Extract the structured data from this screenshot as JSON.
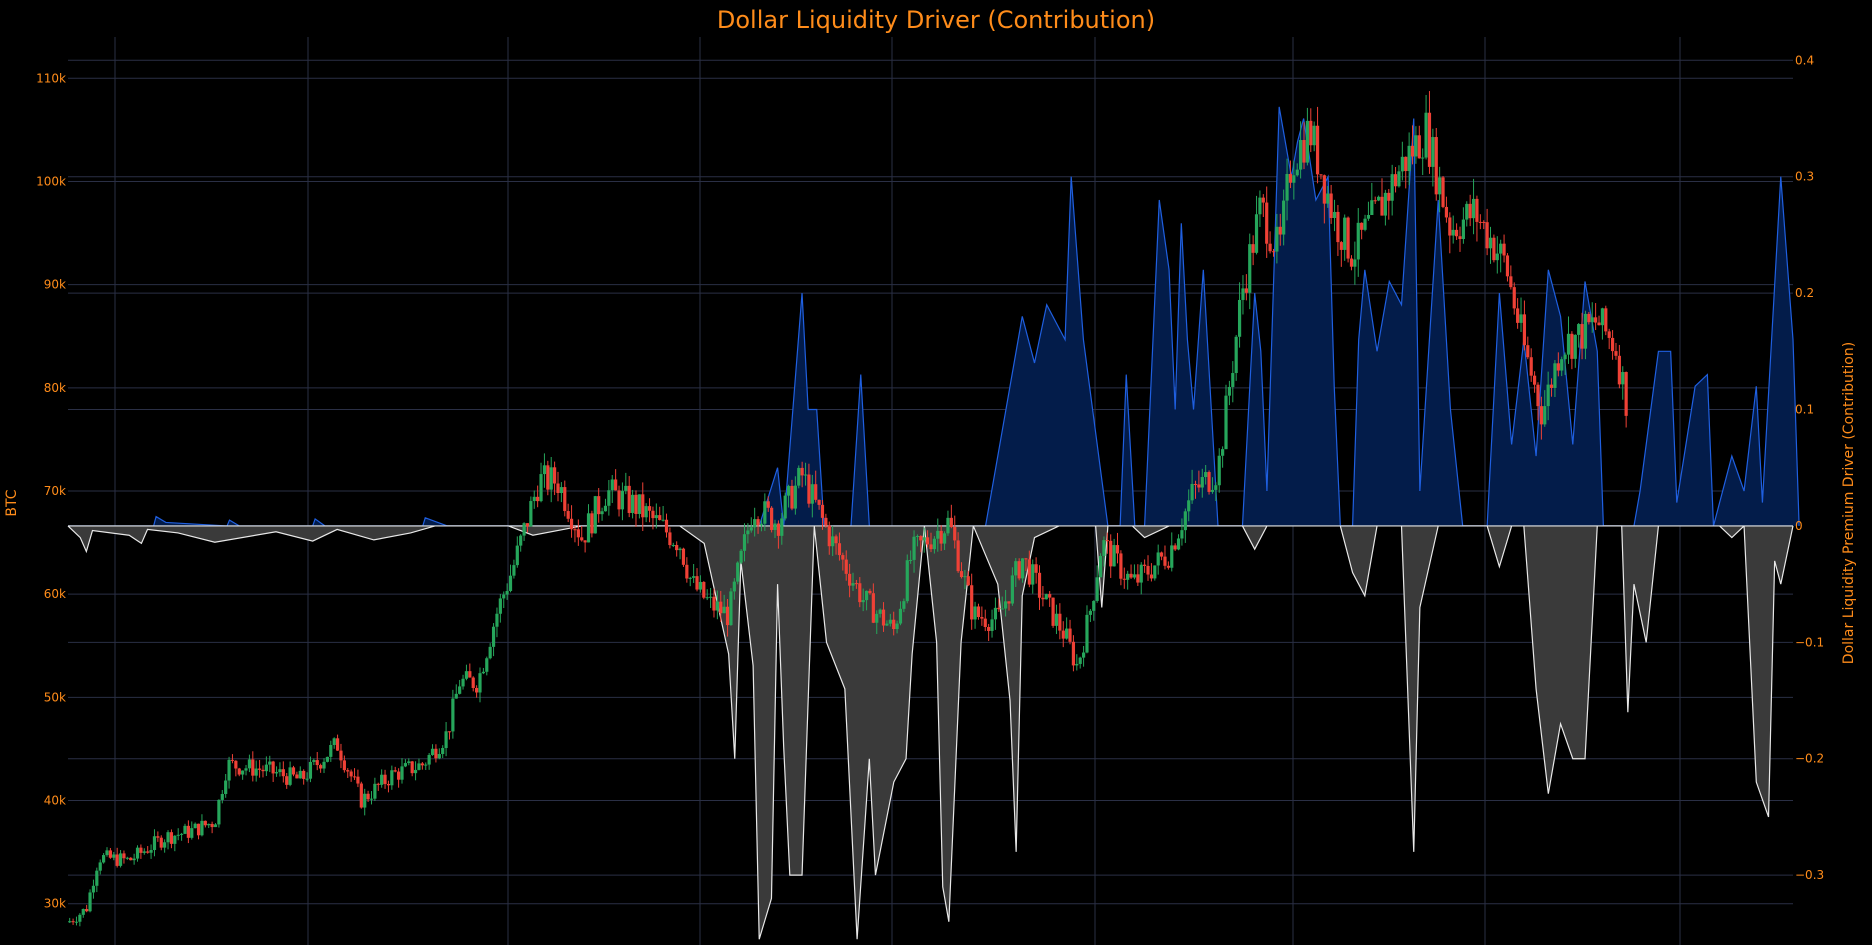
{
  "chart_data": {
    "type": "candlestick+area",
    "title": "Dollar Liquidity Driver (Contribution)",
    "left_axis": {
      "label": "BTC",
      "range": [
        26000,
        114000
      ],
      "ticks": [
        30000,
        40000,
        50000,
        60000,
        70000,
        80000,
        90000,
        100000,
        110000
      ],
      "tick_labels": [
        "30k",
        "40k",
        "50k",
        "60k",
        "70k",
        "80k",
        "90k",
        "100k",
        "110k"
      ]
    },
    "right_axis": {
      "label": "Dollar Liquidity Premium Driver (Contribution)",
      "range": [
        -0.36,
        0.42
      ],
      "ticks": [
        -0.3,
        -0.2,
        -0.1,
        0,
        0.1,
        0.2,
        0.3,
        0.4
      ],
      "tick_labels": [
        "−0.3",
        "−0.2",
        "−0.1",
        "0",
        "0.1",
        "0.2",
        "0.3",
        "0.4"
      ]
    },
    "grid": true,
    "colors": {
      "background": "#000000",
      "text": "#ff8c1a",
      "grid": "#2a2f45",
      "up_candle": "#26a65b",
      "down_candle": "#ef4136",
      "positive_line": "#1f5fe0",
      "positive_fill": "#031c4a",
      "negative_line": "#e8e8e8",
      "negative_fill": "#3a3a3a"
    },
    "price_anchors": [
      [
        0,
        28200
      ],
      [
        0.015,
        29500
      ],
      [
        0.025,
        34500
      ],
      [
        0.05,
        34200
      ],
      [
        0.08,
        36500
      ],
      [
        0.1,
        37000
      ],
      [
        0.12,
        38000
      ],
      [
        0.13,
        43500
      ],
      [
        0.16,
        43000
      ],
      [
        0.19,
        42000
      ],
      [
        0.22,
        45500
      ],
      [
        0.24,
        40000
      ],
      [
        0.265,
        42500
      ],
      [
        0.29,
        43500
      ],
      [
        0.31,
        46500
      ],
      [
        0.32,
        51500
      ],
      [
        0.335,
        51500
      ],
      [
        0.35,
        58000
      ],
      [
        0.365,
        63000
      ],
      [
        0.385,
        71000
      ],
      [
        0.4,
        71000
      ],
      [
        0.42,
        65500
      ],
      [
        0.44,
        70000
      ],
      [
        0.465,
        68500
      ],
      [
        0.48,
        67000
      ],
      [
        0.5,
        65000
      ],
      [
        0.51,
        61000
      ],
      [
        0.525,
        59000
      ],
      [
        0.54,
        58000
      ],
      [
        0.56,
        68500
      ],
      [
        0.58,
        67000
      ],
      [
        0.6,
        71500
      ],
      [
        0.625,
        65000
      ],
      [
        0.65,
        59500
      ],
      [
        0.675,
        56500
      ],
      [
        0.69,
        64000
      ],
      [
        0.72,
        67000
      ],
      [
        0.74,
        58000
      ],
      [
        0.76,
        57500
      ],
      [
        0.78,
        63500
      ],
      [
        0.8,
        59000
      ],
      [
        0.815,
        56000
      ],
      [
        0.825,
        53000
      ],
      [
        0.835,
        58000
      ],
      [
        0.845,
        65000
      ],
      [
        0.87,
        61000
      ],
      [
        0.9,
        64000
      ],
      [
        0.92,
        70000
      ],
      [
        0.94,
        72000
      ],
      [
        0.96,
        89500
      ],
      [
        0.975,
        97500
      ],
      [
        0.99,
        93000
      ],
      [
        1.0,
        102000
      ],
      [
        1.015,
        105000
      ],
      [
        1.035,
        96500
      ],
      [
        1.05,
        93000
      ],
      [
        1.07,
        97000
      ],
      [
        1.09,
        101500
      ],
      [
        1.11,
        105000
      ],
      [
        1.13,
        95500
      ],
      [
        1.15,
        97000
      ],
      [
        1.175,
        92000
      ],
      [
        1.19,
        84000
      ],
      [
        1.205,
        77500
      ],
      [
        1.22,
        84000
      ],
      [
        1.235,
        85000
      ],
      [
        1.25,
        86500
      ],
      [
        1.265,
        84000
      ],
      [
        1.275,
        78000
      ]
    ],
    "positive_anchors": [
      [
        0.0,
        0
      ],
      [
        0.07,
        0
      ],
      [
        0.072,
        0.008
      ],
      [
        0.08,
        0.003
      ],
      [
        0.13,
        0
      ],
      [
        0.132,
        0.005
      ],
      [
        0.14,
        0
      ],
      [
        0.2,
        0
      ],
      [
        0.202,
        0.006
      ],
      [
        0.21,
        0
      ],
      [
        0.29,
        0
      ],
      [
        0.292,
        0.007
      ],
      [
        0.31,
        0
      ],
      [
        0.45,
        0
      ],
      [
        0.565,
        0
      ],
      [
        0.58,
        0.05
      ],
      [
        0.585,
        0
      ],
      [
        0.6,
        0.2
      ],
      [
        0.605,
        0.1
      ],
      [
        0.612,
        0.1
      ],
      [
        0.618,
        0
      ],
      [
        0.64,
        0
      ],
      [
        0.648,
        0.13
      ],
      [
        0.655,
        0
      ],
      [
        0.75,
        0
      ],
      [
        0.78,
        0.18
      ],
      [
        0.79,
        0.14
      ],
      [
        0.8,
        0.19
      ],
      [
        0.815,
        0.16
      ],
      [
        0.82,
        0.3
      ],
      [
        0.83,
        0.16
      ],
      [
        0.85,
        0
      ],
      [
        0.86,
        0
      ],
      [
        0.865,
        0.13
      ],
      [
        0.872,
        0
      ],
      [
        0.88,
        0
      ],
      [
        0.892,
        0.28
      ],
      [
        0.9,
        0.22
      ],
      [
        0.905,
        0.1
      ],
      [
        0.91,
        0.26
      ],
      [
        0.915,
        0.16
      ],
      [
        0.92,
        0.1
      ],
      [
        0.928,
        0.22
      ],
      [
        0.94,
        0
      ],
      [
        0.96,
        0
      ],
      [
        0.97,
        0.2
      ],
      [
        0.975,
        0.15
      ],
      [
        0.98,
        0.03
      ],
      [
        0.99,
        0.36
      ],
      [
        1.0,
        0.3
      ],
      [
        1.005,
        0.33
      ],
      [
        1.01,
        0.35
      ],
      [
        1.02,
        0.28
      ],
      [
        1.03,
        0.3
      ],
      [
        1.035,
        0.12
      ],
      [
        1.04,
        0
      ],
      [
        1.05,
        0
      ],
      [
        1.055,
        0.16
      ],
      [
        1.06,
        0.22
      ],
      [
        1.07,
        0.15
      ],
      [
        1.08,
        0.21
      ],
      [
        1.09,
        0.19
      ],
      [
        1.1,
        0.35
      ],
      [
        1.105,
        0.03
      ],
      [
        1.12,
        0.28
      ],
      [
        1.13,
        0.1
      ],
      [
        1.14,
        0
      ],
      [
        1.16,
        0
      ],
      [
        1.17,
        0.2
      ],
      [
        1.18,
        0.07
      ],
      [
        1.19,
        0.16
      ],
      [
        1.2,
        0.06
      ],
      [
        1.21,
        0.22
      ],
      [
        1.22,
        0.18
      ],
      [
        1.23,
        0.07
      ],
      [
        1.24,
        0.21
      ],
      [
        1.25,
        0.15
      ],
      [
        1.255,
        0
      ],
      [
        1.28,
        0
      ],
      [
        1.285,
        0.03
      ],
      [
        1.3,
        0.15
      ],
      [
        1.31,
        0.15
      ],
      [
        1.315,
        0.02
      ],
      [
        1.33,
        0.12
      ],
      [
        1.34,
        0.13
      ],
      [
        1.345,
        0
      ],
      [
        1.36,
        0.06
      ],
      [
        1.37,
        0.03
      ],
      [
        1.38,
        0.12
      ],
      [
        1.385,
        0.02
      ],
      [
        1.4,
        0.3
      ],
      [
        1.41,
        0.16
      ],
      [
        1.415,
        0
      ]
    ],
    "negative_anchors": [
      [
        0.0,
        0
      ],
      [
        0.01,
        -0.01
      ],
      [
        0.015,
        -0.022
      ],
      [
        0.02,
        -0.004
      ],
      [
        0.05,
        -0.008
      ],
      [
        0.06,
        -0.015
      ],
      [
        0.065,
        -0.003
      ],
      [
        0.09,
        -0.006
      ],
      [
        0.12,
        -0.014
      ],
      [
        0.17,
        -0.005
      ],
      [
        0.2,
        -0.013
      ],
      [
        0.22,
        -0.003
      ],
      [
        0.25,
        -0.012
      ],
      [
        0.28,
        -0.006
      ],
      [
        0.3,
        0
      ],
      [
        0.36,
        0
      ],
      [
        0.38,
        -0.008
      ],
      [
        0.42,
        0
      ],
      [
        0.5,
        0
      ],
      [
        0.52,
        -0.015
      ],
      [
        0.54,
        -0.11
      ],
      [
        0.545,
        -0.2
      ],
      [
        0.55,
        -0.03
      ],
      [
        0.56,
        -0.12
      ],
      [
        0.565,
        -0.355
      ],
      [
        0.575,
        -0.32
      ],
      [
        0.58,
        -0.05
      ],
      [
        0.585,
        -0.19
      ],
      [
        0.59,
        -0.3
      ],
      [
        0.6,
        -0.3
      ],
      [
        0.61,
        0
      ],
      [
        0.62,
        -0.1
      ],
      [
        0.635,
        -0.14
      ],
      [
        0.645,
        -0.355
      ],
      [
        0.655,
        -0.2
      ],
      [
        0.66,
        -0.3
      ],
      [
        0.675,
        -0.22
      ],
      [
        0.685,
        -0.2
      ],
      [
        0.69,
        -0.11
      ],
      [
        0.7,
        0
      ],
      [
        0.71,
        -0.1
      ],
      [
        0.715,
        -0.31
      ],
      [
        0.72,
        -0.34
      ],
      [
        0.73,
        -0.1
      ],
      [
        0.74,
        0
      ],
      [
        0.76,
        -0.05
      ],
      [
        0.77,
        -0.15
      ],
      [
        0.775,
        -0.28
      ],
      [
        0.78,
        -0.06
      ],
      [
        0.79,
        -0.01
      ],
      [
        0.81,
        0
      ],
      [
        0.84,
        0
      ],
      [
        0.845,
        -0.07
      ],
      [
        0.85,
        0
      ],
      [
        0.87,
        0
      ],
      [
        0.88,
        -0.01
      ],
      [
        0.9,
        0
      ],
      [
        0.96,
        0
      ],
      [
        0.97,
        -0.02
      ],
      [
        0.98,
        0
      ],
      [
        1.04,
        0
      ],
      [
        1.05,
        -0.04
      ],
      [
        1.06,
        -0.06
      ],
      [
        1.07,
        0
      ],
      [
        1.09,
        0
      ],
      [
        1.1,
        -0.28
      ],
      [
        1.105,
        -0.07
      ],
      [
        1.12,
        0
      ],
      [
        1.16,
        0
      ],
      [
        1.17,
        -0.035
      ],
      [
        1.18,
        0
      ],
      [
        1.19,
        0
      ],
      [
        1.2,
        -0.14
      ],
      [
        1.21,
        -0.23
      ],
      [
        1.22,
        -0.17
      ],
      [
        1.23,
        -0.2
      ],
      [
        1.24,
        -0.2
      ],
      [
        1.25,
        0
      ],
      [
        1.27,
        0
      ],
      [
        1.275,
        -0.16
      ],
      [
        1.28,
        -0.05
      ],
      [
        1.29,
        -0.1
      ],
      [
        1.3,
        0
      ],
      [
        1.35,
        0
      ],
      [
        1.36,
        -0.01
      ],
      [
        1.37,
        0
      ],
      [
        1.38,
        -0.22
      ],
      [
        1.39,
        -0.25
      ],
      [
        1.395,
        -0.03
      ],
      [
        1.4,
        -0.05
      ],
      [
        1.41,
        0
      ]
    ],
    "anchor_x_range": [
      0,
      1.41
    ]
  }
}
